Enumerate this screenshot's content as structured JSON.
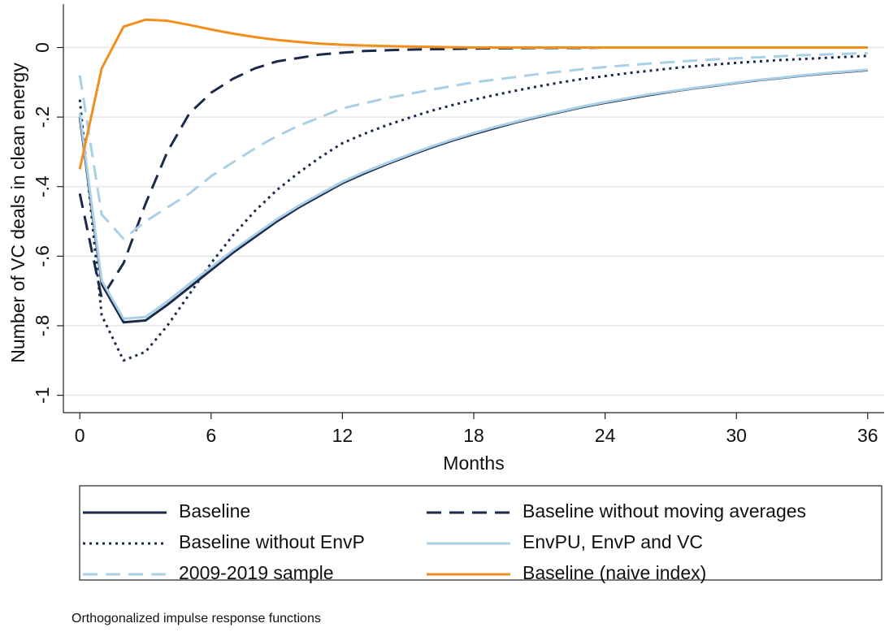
{
  "chart_data": {
    "type": "line",
    "x_label": "Months",
    "y_label": "Number of VC deals in clean energy",
    "note": "Orthogonalized impulse response functions",
    "x": [
      0,
      1,
      2,
      3,
      4,
      5,
      6,
      7,
      8,
      9,
      10,
      11,
      12,
      13,
      14,
      15,
      16,
      17,
      18,
      19,
      20,
      21,
      22,
      23,
      24,
      25,
      26,
      27,
      28,
      29,
      30,
      31,
      32,
      33,
      34,
      35,
      36
    ],
    "xlim": [
      -0.75,
      36.75
    ],
    "xticks": [
      0,
      6,
      12,
      18,
      24,
      30,
      36
    ],
    "ylim": [
      -1.05,
      0.125
    ],
    "yticks": [
      {
        "value": 0,
        "label": "0"
      },
      {
        "value": -0.2,
        "label": "-.2"
      },
      {
        "value": -0.4,
        "label": "-.4"
      },
      {
        "value": -0.6,
        "label": "-.6"
      },
      {
        "value": -0.8,
        "label": "-.8"
      },
      {
        "value": -1,
        "label": "-1"
      }
    ],
    "grid": true,
    "series": [
      {
        "name": "Baseline",
        "color": "#1b2a4a",
        "style": "solid",
        "values": [
          -0.2,
          -0.68,
          -0.79,
          -0.785,
          -0.74,
          -0.69,
          -0.64,
          -0.59,
          -0.545,
          -0.5,
          -0.46,
          -0.425,
          -0.39,
          -0.362,
          -0.336,
          -0.312,
          -0.289,
          -0.268,
          -0.249,
          -0.231,
          -0.214,
          -0.199,
          -0.185,
          -0.171,
          -0.159,
          -0.148,
          -0.137,
          -0.127,
          -0.118,
          -0.11,
          -0.102,
          -0.094,
          -0.088,
          -0.081,
          -0.075,
          -0.07,
          -0.065
        ]
      },
      {
        "name": "Baseline without moving averages",
        "color": "#1b2a4a",
        "style": "dash",
        "values": [
          -0.42,
          -0.72,
          -0.62,
          -0.45,
          -0.3,
          -0.19,
          -0.13,
          -0.09,
          -0.06,
          -0.04,
          -0.03,
          -0.02,
          -0.015,
          -0.01,
          -0.008,
          -0.006,
          -0.005,
          -0.004,
          -0.003,
          -0.002,
          -0.002,
          -0.001,
          -0.001,
          -0.001,
          0,
          0,
          0,
          0,
          0,
          0,
          0,
          0,
          0,
          0,
          0,
          0,
          0
        ]
      },
      {
        "name": "Baseline without EnvP",
        "color": "#1b2a4a",
        "style": "dot",
        "values": [
          -0.15,
          -0.77,
          -0.9,
          -0.875,
          -0.8,
          -0.71,
          -0.62,
          -0.54,
          -0.47,
          -0.41,
          -0.36,
          -0.315,
          -0.275,
          -0.248,
          -0.224,
          -0.203,
          -0.183,
          -0.166,
          -0.15,
          -0.136,
          -0.123,
          -0.111,
          -0.1,
          -0.09,
          -0.082,
          -0.074,
          -0.067,
          -0.06,
          -0.054,
          -0.049,
          -0.044,
          -0.04,
          -0.036,
          -0.033,
          -0.03,
          -0.027,
          -0.024
        ]
      },
      {
        "name": "EnvPU, EnvP and VC",
        "color": "#a9d0e6",
        "style": "solid",
        "values": [
          -0.19,
          -0.67,
          -0.78,
          -0.775,
          -0.73,
          -0.68,
          -0.632,
          -0.583,
          -0.538,
          -0.494,
          -0.455,
          -0.42,
          -0.386,
          -0.358,
          -0.333,
          -0.309,
          -0.286,
          -0.265,
          -0.246,
          -0.228,
          -0.212,
          -0.197,
          -0.183,
          -0.169,
          -0.157,
          -0.146,
          -0.135,
          -0.126,
          -0.117,
          -0.109,
          -0.101,
          -0.093,
          -0.087,
          -0.08,
          -0.074,
          -0.069,
          -0.064
        ]
      },
      {
        "name": "2009-2019 sample",
        "color": "#a9d0e6",
        "style": "dash",
        "values": [
          -0.08,
          -0.48,
          -0.55,
          -0.5,
          -0.46,
          -0.42,
          -0.37,
          -0.33,
          -0.29,
          -0.255,
          -0.225,
          -0.2,
          -0.175,
          -0.16,
          -0.146,
          -0.134,
          -0.122,
          -0.111,
          -0.1,
          -0.092,
          -0.084,
          -0.076,
          -0.069,
          -0.062,
          -0.056,
          -0.051,
          -0.046,
          -0.042,
          -0.038,
          -0.034,
          -0.031,
          -0.028,
          -0.025,
          -0.022,
          -0.02,
          -0.018,
          -0.016
        ]
      },
      {
        "name": "Baseline (naive index)",
        "color": "#f28e1c",
        "style": "solid",
        "values": [
          -0.35,
          -0.06,
          0.06,
          0.08,
          0.077,
          0.065,
          0.052,
          0.04,
          0.03,
          0.022,
          0.016,
          0.011,
          0.008,
          0.006,
          0.004,
          0.003,
          0.002,
          0.001,
          0,
          0,
          0,
          0,
          0,
          0,
          0,
          0,
          0,
          0,
          0,
          0,
          0,
          0,
          0,
          0,
          0,
          0,
          0
        ]
      }
    ]
  }
}
